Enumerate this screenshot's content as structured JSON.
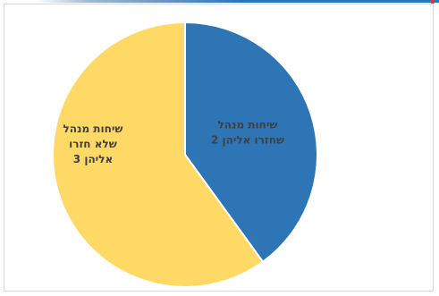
{
  "chart_data": {
    "type": "pie",
    "title": "",
    "categories": [
      "שיחות מנהל שחזרו אליהן",
      "שיחות מנהל שלא חזרו אליהן"
    ],
    "values": [
      2,
      3
    ],
    "colors": [
      "#2e75b6",
      "#ffd966"
    ],
    "slice_labels": [
      {
        "lines": [
          "שיחות מנהל",
          "שחזרו אליהן 2"
        ]
      },
      {
        "lines": [
          "שיחות מנהל",
          "שלא חזרו",
          "אליהן  3"
        ]
      }
    ],
    "start_angle_deg": 0,
    "direction": "clockwise",
    "legend": "none"
  }
}
